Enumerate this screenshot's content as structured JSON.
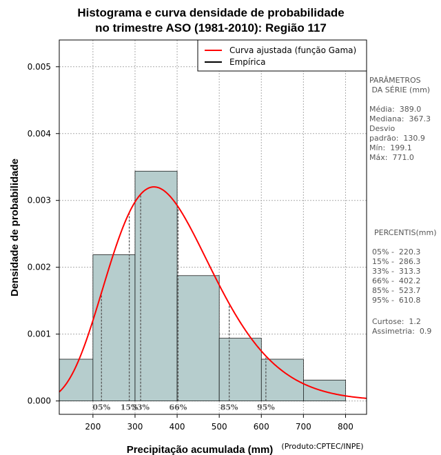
{
  "chart_data": {
    "type": "histogram",
    "title_line1": "Histograma e curva densidade de probabilidade",
    "title_line2": "no trimestre ASO (1981-2010): Região 117",
    "xlabel": "Precipitação acumulada (mm)",
    "ylabel": "Densidade de probabilidade",
    "credit": "(Produto:CPTEC/INPE)",
    "xlim": [
      120,
      850
    ],
    "ylim": [
      -0.0002,
      0.0054
    ],
    "x_ticks": [
      200,
      300,
      400,
      500,
      600,
      700,
      800
    ],
    "y_ticks": [
      {
        "value": 0.0,
        "label": "0.000"
      },
      {
        "value": 0.001,
        "label": "0.001"
      },
      {
        "value": 0.002,
        "label": "0.002"
      },
      {
        "value": 0.003,
        "label": "0.003"
      },
      {
        "value": 0.004,
        "label": "0.004"
      },
      {
        "value": 0.005,
        "label": "0.005"
      }
    ],
    "grid": true,
    "bins": [
      {
        "start": 100,
        "end": 200,
        "density": 0.000625
      },
      {
        "start": 200,
        "end": 300,
        "density": 0.002188
      },
      {
        "start": 300,
        "end": 400,
        "density": 0.003438
      },
      {
        "start": 400,
        "end": 500,
        "density": 0.001875
      },
      {
        "start": 500,
        "end": 600,
        "density": 0.000938
      },
      {
        "start": 600,
        "end": 700,
        "density": 0.000625
      },
      {
        "start": 700,
        "end": 800,
        "density": 0.000313
      }
    ],
    "gamma_fit": {
      "shape": 8.83,
      "scale": 44.05
    },
    "percentile_lines": [
      {
        "label": "05%",
        "value": 220.3
      },
      {
        "label": "15%",
        "value": 286.3
      },
      {
        "label": "33%",
        "value": 313.3
      },
      {
        "label": "66%",
        "value": 402.2
      },
      {
        "label": "85%",
        "value": 523.7
      },
      {
        "label": "95%",
        "value": 610.8
      }
    ],
    "legend": [
      {
        "label": "Curva ajustada (função Gama)",
        "color": "#ff0000"
      },
      {
        "label": "Empírica",
        "color": "#000000"
      }
    ],
    "bar_fill": "#b6cdcd",
    "curve_color": "#ff0000"
  },
  "side_panel": {
    "params_title": "PARÂMETROS\n DA SÉRIE (mm)",
    "params_body": "Média:  389.0\nMediana:  367.3\nDesvio\npadrão:  130.9\nMín:  199.1\nMáx:  771.0",
    "pct_title": "PERCENTIS(mm)",
    "pct_body": "05% -  220.3\n15% -  286.3\n33% -  313.3\n66% -  402.2\n85% -  523.7\n95% -  610.8",
    "stats_body": "Curtose:  1.2\nAssimetria:  0.9"
  }
}
